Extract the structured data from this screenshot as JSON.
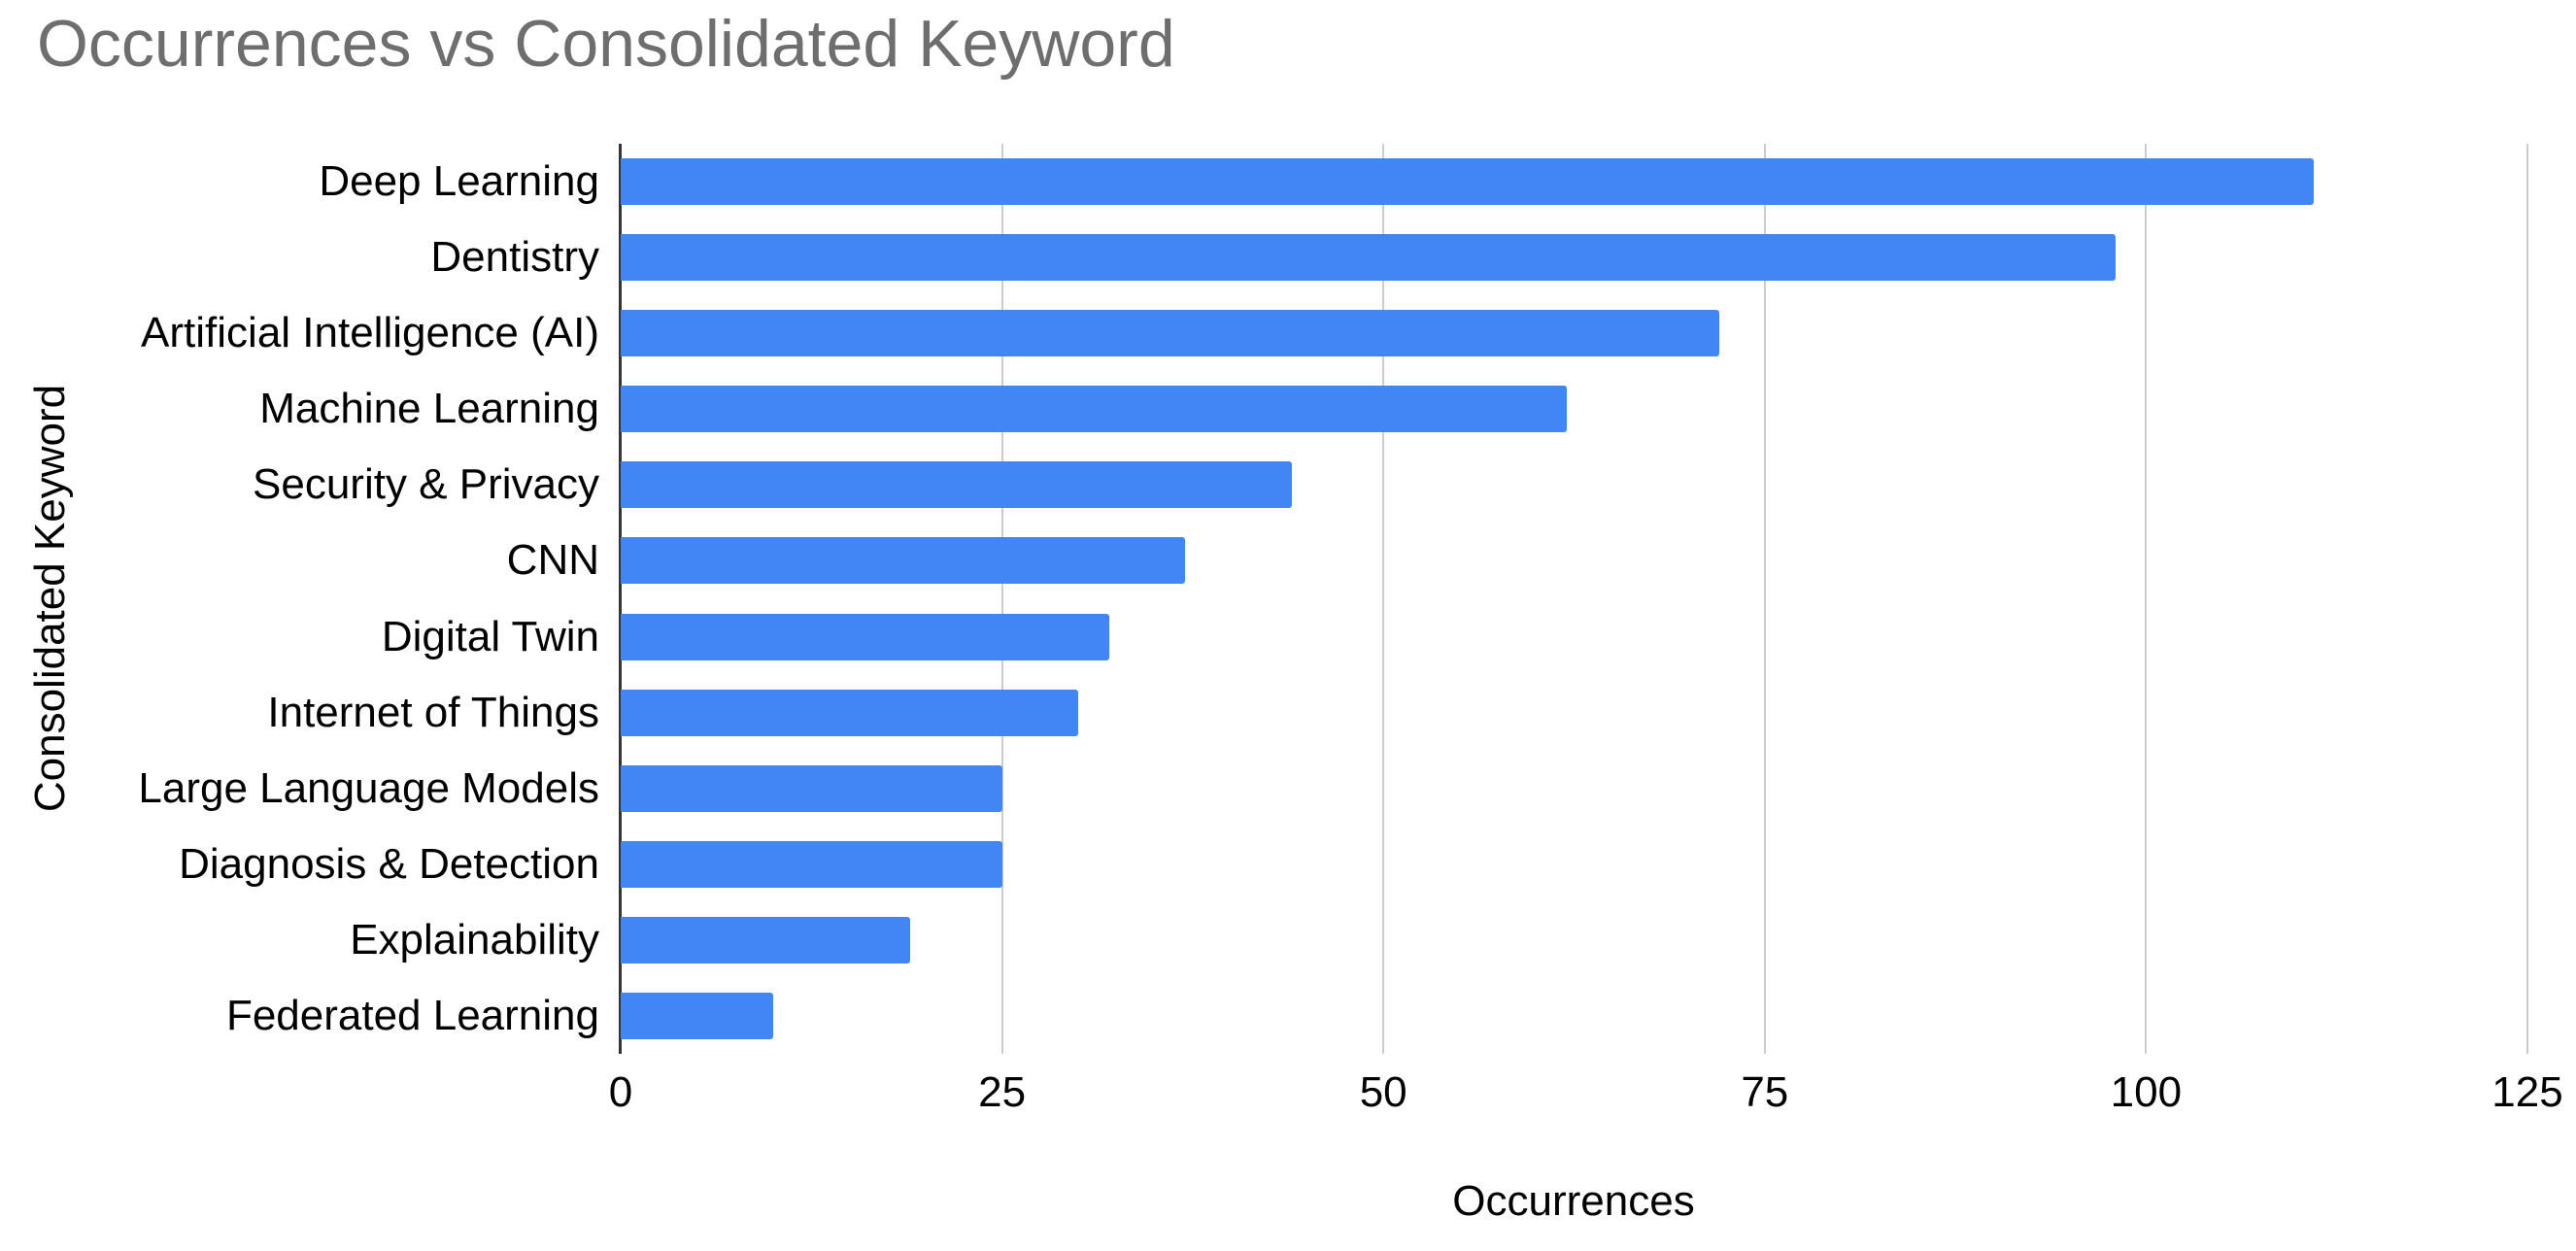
{
  "title": "Occurrences vs Consolidated Keyword",
  "chart_data": {
    "type": "bar",
    "orientation": "horizontal",
    "title": "Occurrences vs Consolidated Keyword",
    "categories": [
      "Deep Learning",
      "Dentistry",
      "Artificial Intelligence (AI)",
      "Machine Learning",
      "Security & Privacy",
      "CNN",
      "Digital Twin",
      "Internet of Things",
      "Large Language Models",
      "Diagnosis & Detection",
      "Explainability",
      "Federated Learning"
    ],
    "values": [
      111,
      98,
      72,
      62,
      44,
      37,
      32,
      30,
      25,
      25,
      19,
      10
    ],
    "xlabel": "Occurrences",
    "ylabel": "Consolidated Keyword",
    "xlim": [
      0,
      125
    ],
    "xticks": [
      0,
      25,
      50,
      75,
      100,
      125
    ],
    "grid": true,
    "legend_position": "none",
    "colors": {
      "bar": "#4285f4",
      "gridline": "#cccccc",
      "axis_line": "#333333",
      "title_text": "#6e6e6e",
      "label_text": "#000000",
      "background": "#ffffff"
    }
  }
}
